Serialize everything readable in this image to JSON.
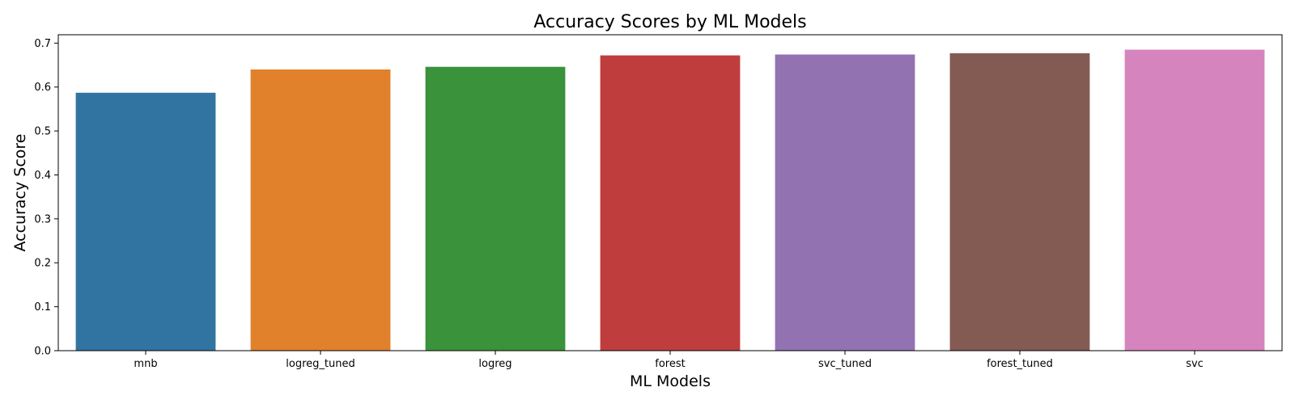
{
  "chart_data": {
    "type": "bar",
    "title": "Accuracy Scores by ML Models",
    "xlabel": "ML Models",
    "ylabel": "Accuracy Score",
    "categories": [
      "mnb",
      "logreg_tuned",
      "logreg",
      "forest",
      "svc_tuned",
      "forest_tuned",
      "svc"
    ],
    "values": [
      0.587,
      0.64,
      0.646,
      0.672,
      0.674,
      0.677,
      0.685
    ],
    "colors": [
      "#3274a1",
      "#e1812c",
      "#3a923a",
      "#c03d3e",
      "#9372b2",
      "#845b53",
      "#d684bd"
    ],
    "yticks": [
      "0.0",
      "0.1",
      "0.2",
      "0.3",
      "0.4",
      "0.5",
      "0.6",
      "0.7"
    ],
    "ylim": [
      0,
      0.719
    ],
    "grid": false,
    "legend": "none"
  }
}
